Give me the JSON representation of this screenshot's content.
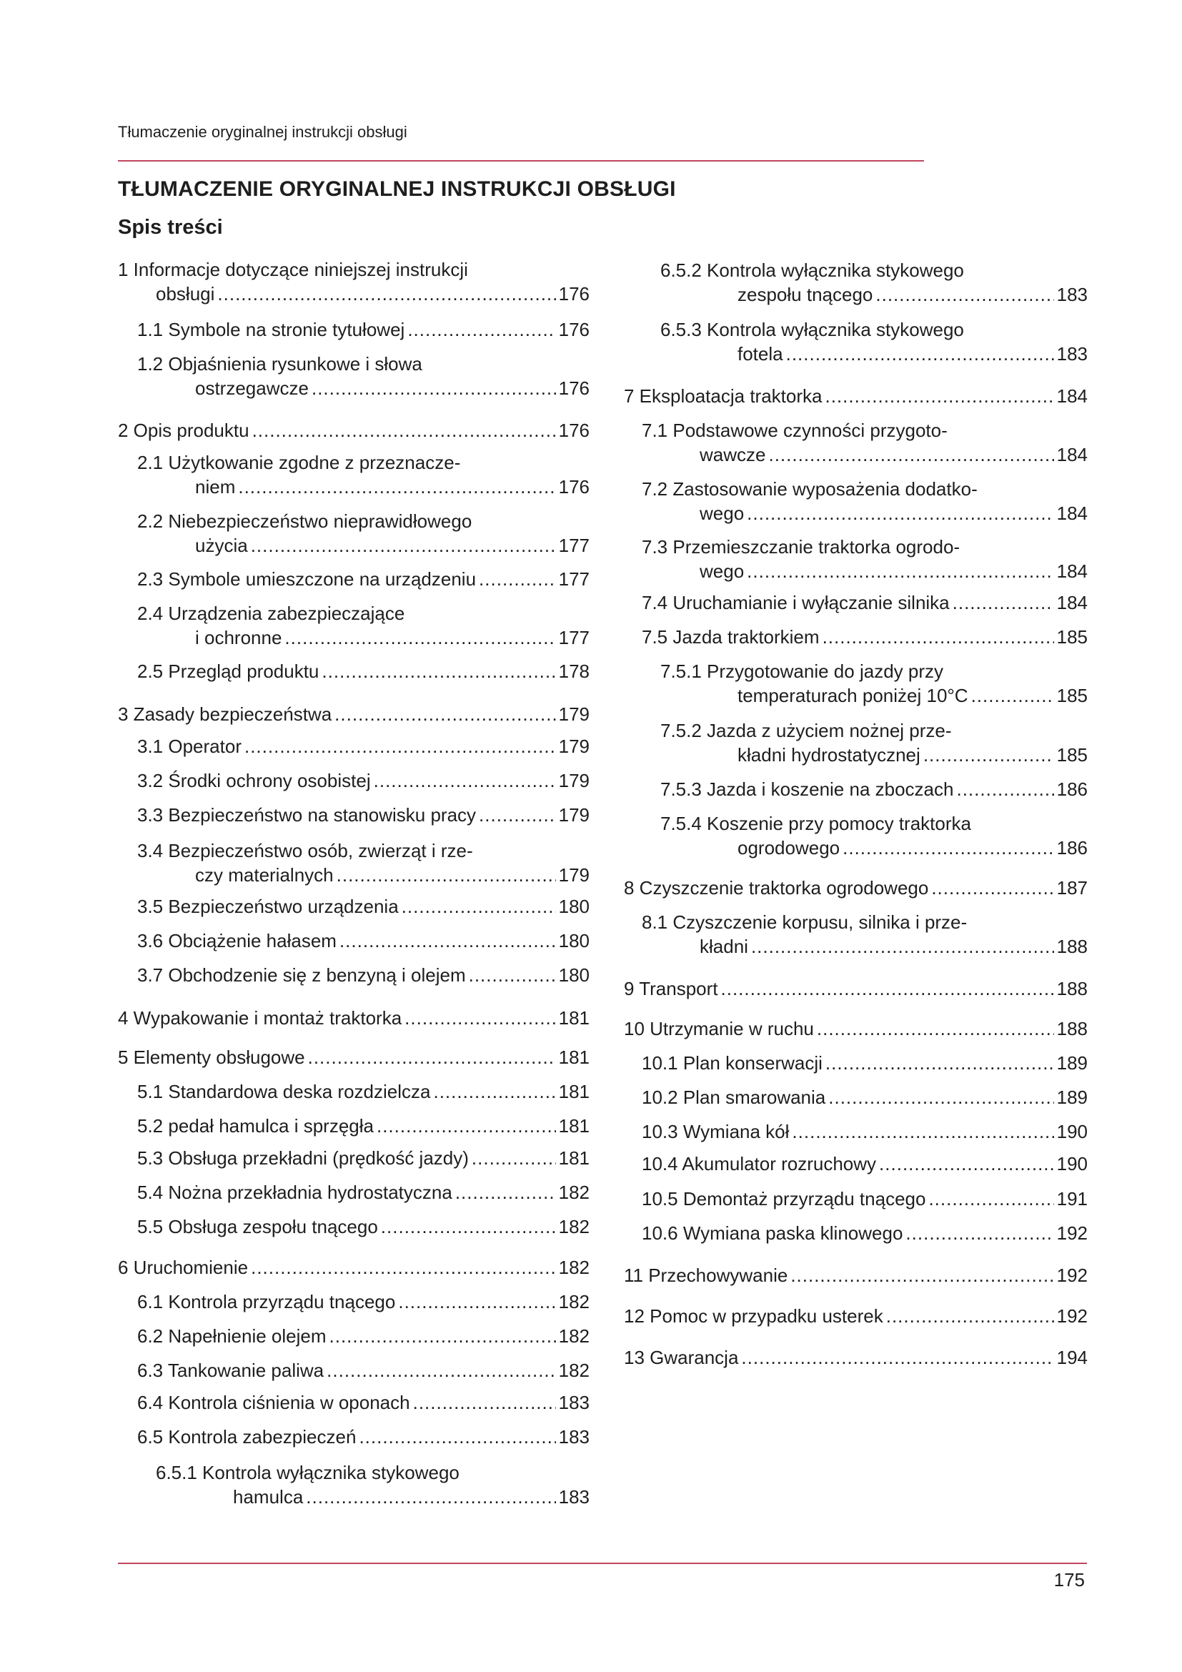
{
  "running_head": "Tłumaczenie oryginalnej instrukcji obsługi",
  "title": "TŁUMACZENIE ORYGINALNEJ INSTRUKCJI OBSŁUGI",
  "toc_title": "Spis treści",
  "accent_color": "#c0475f",
  "page_number": "175",
  "toc": {
    "left": [
      {
        "label": "1 Informacje dotyczące niniejszej instrukcji",
        "cont": "obsługi",
        "page": "176"
      },
      {
        "label": "1.1 Symbole na stronie tytułowej",
        "page": "176"
      },
      {
        "label": "1.2 Objaśnienia rysunkowe i słowa",
        "cont": "ostrzegawcze",
        "page": "176"
      },
      {
        "label": "2 Opis produktu",
        "page": "176"
      },
      {
        "label": "2.1 Użytkowanie zgodne z przeznacze-",
        "cont": "niem",
        "page": "176"
      },
      {
        "label": "2.2 Niebezpieczeństwo nieprawidłowego",
        "cont": "użycia",
        "page": "177"
      },
      {
        "label": "2.3 Symbole umieszczone na urządzeniu",
        "page": "177"
      },
      {
        "label": "2.4 Urządzenia zabezpieczające",
        "cont": "i ochronne",
        "page": "177"
      },
      {
        "label": "2.5 Przegląd produktu",
        "page": "178"
      },
      {
        "label": "3 Zasady bezpieczeństwa",
        "page": "179"
      },
      {
        "label": "3.1 Operator",
        "page": "179"
      },
      {
        "label": "3.2 Środki ochrony osobistej",
        "page": "179"
      },
      {
        "label": "3.3 Bezpieczeństwo na stanowisku pracy",
        "page": "179"
      },
      {
        "label": "3.4 Bezpieczeństwo osób, zwierząt i rze-",
        "cont": "czy materialnych",
        "page": "179"
      },
      {
        "label": "3.5 Bezpieczeństwo urządzenia",
        "page": "180"
      },
      {
        "label": "3.6 Obciążenie hałasem",
        "page": "180"
      },
      {
        "label": "3.7 Obchodzenie się z benzyną i olejem",
        "page": "180"
      },
      {
        "label": "4 Wypakowanie i montaż traktorka",
        "page": "181"
      },
      {
        "label": "5 Elementy obsługowe",
        "page": "181"
      },
      {
        "label": "5.1 Standardowa deska rozdzielcza",
        "page": "181"
      },
      {
        "label": "5.2 pedał hamulca i sprzęgła",
        "page": "181"
      },
      {
        "label": "5.3 Obsługa przekładni (prędkość jazdy)",
        "page": "181"
      },
      {
        "label": "5.4 Nożna przekładnia hydrostatyczna",
        "page": "182"
      },
      {
        "label": "5.5 Obsługa zespołu tnącego",
        "page": "182"
      },
      {
        "label": "6 Uruchomienie",
        "page": "182"
      },
      {
        "label": "6.1 Kontrola przyrządu tnącego",
        "page": "182"
      },
      {
        "label": "6.2 Napełnienie olejem",
        "page": "182"
      },
      {
        "label": "6.3 Tankowanie paliwa",
        "page": "182"
      },
      {
        "label": "6.4 Kontrola ciśnienia w oponach",
        "page": "183"
      },
      {
        "label": "6.5 Kontrola zabezpieczeń",
        "page": "183"
      },
      {
        "label": "6.5.1 Kontrola wyłącznika stykowego",
        "cont": "hamulca",
        "page": "183"
      }
    ],
    "right": [
      {
        "label": "6.5.2 Kontrola wyłącznika stykowego",
        "cont": "zespołu tnącego",
        "page": "183"
      },
      {
        "label": "6.5.3 Kontrola wyłącznika stykowego",
        "cont": "fotela",
        "page": "183"
      },
      {
        "label": "7 Eksploatacja traktorka",
        "page": "184"
      },
      {
        "label": "7.1 Podstawowe czynności przygoto-",
        "cont": "wawcze",
        "page": "184"
      },
      {
        "label": "7.2 Zastosowanie wyposażenia dodatko-",
        "cont": "wego",
        "page": "184"
      },
      {
        "label": "7.3 Przemieszczanie traktorka ogrodo-",
        "cont": "wego",
        "page": "184"
      },
      {
        "label": "7.4 Uruchamianie i wyłączanie silnika",
        "page": "184"
      },
      {
        "label": "7.5 Jazda traktorkiem",
        "page": "185"
      },
      {
        "label": "7.5.1 Przygotowanie do jazdy przy",
        "cont": "temperaturach poniżej 10°C",
        "page": "185"
      },
      {
        "label": "7.5.2 Jazda z użyciem nożnej prze-",
        "cont": "kładni hydrostatycznej",
        "page": "185"
      },
      {
        "label": "7.5.3 Jazda i koszenie na zboczach",
        "page": "186"
      },
      {
        "label": "7.5.4 Koszenie przy pomocy traktorka",
        "cont": "ogrodowego",
        "page": "186"
      },
      {
        "label": "8 Czyszczenie traktorka ogrodowego",
        "page": "187"
      },
      {
        "label": "8.1 Czyszczenie korpusu, silnika i prze-",
        "cont": "kładni",
        "page": "188"
      },
      {
        "label": "9 Transport",
        "page": "188"
      },
      {
        "label": "10 Utrzymanie w ruchu",
        "page": "188"
      },
      {
        "label": "10.1 Plan konserwacji",
        "page": "189"
      },
      {
        "label": "10.2 Plan smarowania",
        "page": "189"
      },
      {
        "label": "10.3 Wymiana kół",
        "page": "190"
      },
      {
        "label": "10.4 Akumulator rozruchowy",
        "page": "190"
      },
      {
        "label": "10.5 Demontaż przyrządu tnącego",
        "page": "191"
      },
      {
        "label": "10.6 Wymiana paska klinowego",
        "page": "192"
      },
      {
        "label": "11 Przechowywanie",
        "page": "192"
      },
      {
        "label": "12 Pomoc w przypadku usterek",
        "page": "192"
      },
      {
        "label": "13 Gwarancja",
        "page": "194"
      }
    ]
  }
}
